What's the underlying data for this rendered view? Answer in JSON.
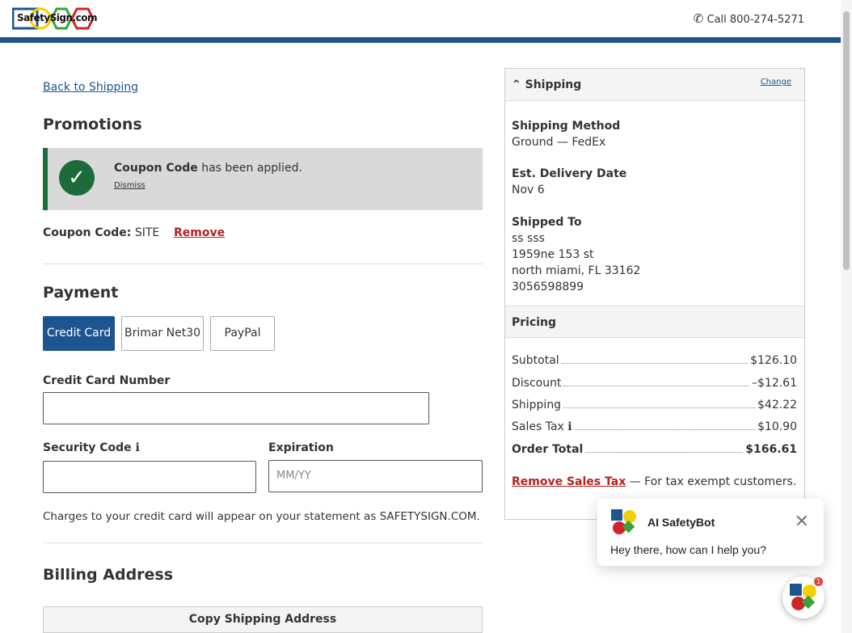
{
  "header": {
    "logo_text": "SafetySign.com",
    "phone_label": "Call 800-274-5271"
  },
  "back_link": "Back to Shipping",
  "promotions": {
    "title": "Promotions",
    "alert_bold": "Coupon Code",
    "alert_text": " has been applied.",
    "dismiss": "Dismiss",
    "coupon_label": "Coupon Code:",
    "coupon_value": "SITE",
    "remove": "Remove"
  },
  "payment": {
    "title": "Payment",
    "tabs": [
      "Credit Card",
      "Brimar Net30",
      "PayPal"
    ],
    "card_label": "Credit Card Number",
    "card_value": "",
    "security_label": "Security Code",
    "security_value": "",
    "expiration_label": "Expiration",
    "expiration_placeholder": "MM/YY",
    "note": "Charges to your credit card will appear on your statement as SAFETYSIGN.COM."
  },
  "billing": {
    "title": "Billing Address",
    "copy_button": "Copy Shipping Address"
  },
  "summary": {
    "shipping_title": "Shipping",
    "change": "Change",
    "method_label": "Shipping Method",
    "method_value": "Ground — FedEx",
    "delivery_label": "Est. Delivery Date",
    "delivery_value": "Nov 6",
    "shipped_label": "Shipped To",
    "address": [
      "ss sss",
      "1959ne 153 st",
      "north miami, FL 33162",
      "3056598899"
    ],
    "pricing_title": "Pricing",
    "lines": [
      {
        "label": "Subtotal",
        "value": "$126.10"
      },
      {
        "label": "Discount",
        "value": "–$12.61"
      },
      {
        "label": "Shipping",
        "value": "$42.22"
      },
      {
        "label": "Sales Tax",
        "value": "$10.90"
      },
      {
        "label": "Order Total",
        "value": "$166.61"
      }
    ],
    "remove_tax": "Remove Sales Tax",
    "remove_tax_note": " — For tax exempt customers."
  },
  "chat": {
    "name": "AI SafetyBot",
    "message": "Hey there, how can I help you?",
    "badge": "1"
  },
  "colors": {
    "brand_blue": "#1d5591",
    "success_green": "#1d6b3a",
    "link_red": "#b22222"
  }
}
